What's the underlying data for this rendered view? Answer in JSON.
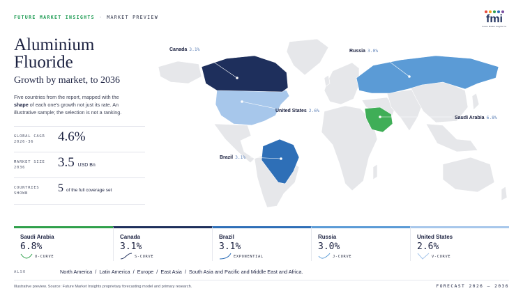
{
  "header": {
    "brand": "FUTURE MARKET INSIGHTS",
    "separator": "·",
    "section": "MARKET PREVIEW",
    "logo_text": "fmi",
    "logo_sub": "Future Market Insights Inc."
  },
  "title": "Aluminium Fluoride",
  "subtitle": "Growth by market, to 2036",
  "description": {
    "part1": "Five countries from the report, mapped with the ",
    "bold": "shape",
    "part2": " of each one's growth not just its rate. An illustrative sample; the selection is not a ranking."
  },
  "stats": [
    {
      "label": "GLOBAL CAGR 2026-36",
      "value": "4.6%",
      "unit": ""
    },
    {
      "label": "MARKET SIZE 2036",
      "value": "3.5",
      "unit": "USD Bn"
    },
    {
      "label": "COUNTRIES SHOWN",
      "value": "5",
      "unit": "of the full coverage set"
    }
  ],
  "map": {
    "labels": [
      {
        "name": "Canada",
        "value": "3.1%"
      },
      {
        "name": "Russia",
        "value": "3.0%"
      },
      {
        "name": "United States",
        "value": "2.6%"
      },
      {
        "name": "Saudi Arabia",
        "value": "6.8%"
      },
      {
        "name": "Brazil",
        "value": "3.1%"
      }
    ],
    "colors": {
      "base": "#e6e7ea",
      "canada": "#1e2f5c",
      "us": "#a7c7eb",
      "russia": "#5b9bd6",
      "brazil": "#2e6fb7",
      "saudi": "#3fae57"
    }
  },
  "cards": [
    {
      "name": "Saudi Arabia",
      "value": "6.8%",
      "curve": "U-CURVE",
      "color": "#2fa04b"
    },
    {
      "name": "Canada",
      "value": "3.1%",
      "curve": "S-CURVE",
      "color": "#1e2f5c"
    },
    {
      "name": "Brazil",
      "value": "3.1%",
      "curve": "EXPONENTIAL",
      "color": "#2e6fb7"
    },
    {
      "name": "Russia",
      "value": "3.0%",
      "curve": "J-CURVE",
      "color": "#5b9bd6"
    },
    {
      "name": "United States",
      "value": "2.6%",
      "curve": "V-CURVE",
      "color": "#a7c7eb"
    }
  ],
  "also": {
    "label": "ALSO",
    "text": "North America  /  Latin America  /  Europe  /  East Asia  /  South Asia and Pacific and Middle East and Africa."
  },
  "footer": {
    "source": "Illustrative preview. Source: Future Market Insights proprietary forecasting model and primary research.",
    "forecast": "FORECAST 2026 – 2036"
  }
}
